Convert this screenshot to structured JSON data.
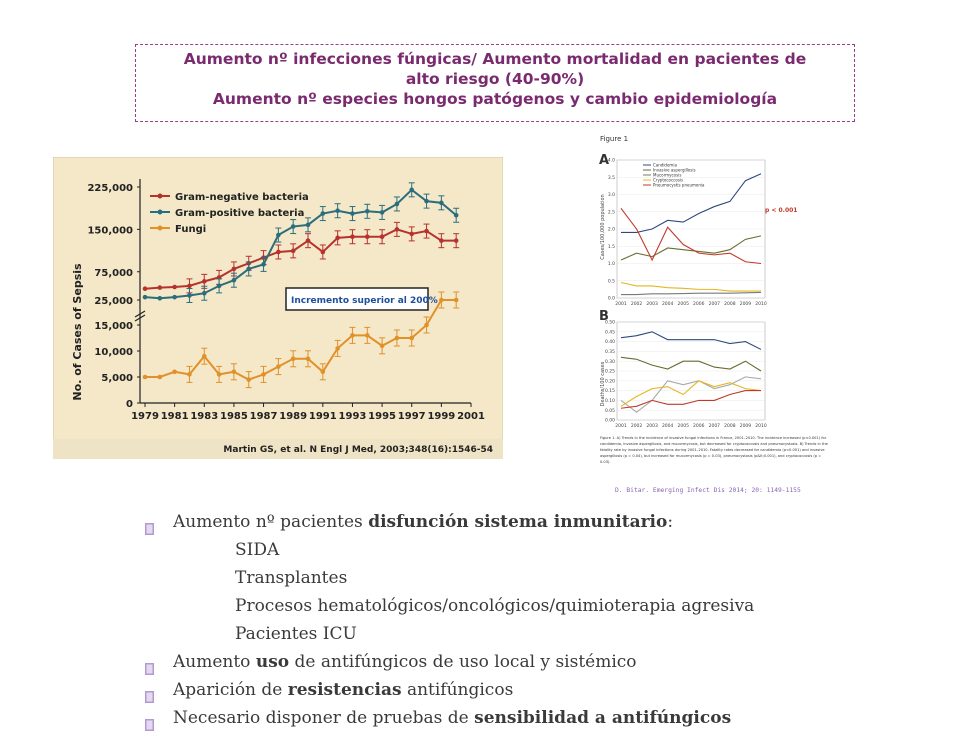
{
  "title": {
    "line1": "Aumento nº infecciones fúngicas/ Aumento mortalidad en pacientes de",
    "line2": "alto riesgo (40-90%)",
    "line3": "Aumento nº especies hongos patógenos y cambio epidemiología"
  },
  "chart_data": [
    {
      "type": "line",
      "ylabel": "No. of Cases of Sepsis",
      "x": [
        1979,
        1980,
        1981,
        1982,
        1983,
        1984,
        1985,
        1986,
        1987,
        1988,
        1989,
        1990,
        1991,
        1992,
        1993,
        1994,
        1995,
        1996,
        1997,
        1998,
        1999,
        2000
      ],
      "x_ticks": [
        "1979",
        "1981",
        "1983",
        "1985",
        "1987",
        "1989",
        "1991",
        "1993",
        "1995",
        "1997",
        "1999",
        "2001"
      ],
      "y_ticks_upper": [
        "225,000",
        "150,000",
        "75,000",
        "25,000"
      ],
      "y_ticks_lower": [
        "15,000",
        "10,000",
        "5,000",
        "0"
      ],
      "series": [
        {
          "name": "Gram-negative bacteria",
          "color": "#b5322f",
          "values": [
            45000,
            47000,
            48000,
            50000,
            58000,
            65000,
            80000,
            90000,
            100000,
            110000,
            112000,
            130000,
            110000,
            135000,
            137000,
            137000,
            137000,
            150000,
            142000,
            147000,
            130000,
            130000
          ]
        },
        {
          "name": "Gram-positive bacteria",
          "color": "#2a6e7e",
          "values": [
            30000,
            28000,
            30000,
            33000,
            37000,
            50000,
            60000,
            80000,
            88000,
            140000,
            155000,
            158000,
            178000,
            183000,
            178000,
            182000,
            180000,
            195000,
            220000,
            200000,
            197000,
            175000
          ]
        },
        {
          "name": "Fungi",
          "color": "#e0912a",
          "values": [
            5000,
            5000,
            6000,
            5500,
            9000,
            5500,
            6000,
            4500,
            5500,
            7000,
            8500,
            8500,
            6000,
            10500,
            13000,
            13000,
            11000,
            12500,
            12500,
            15000,
            25000,
            25000
          ]
        }
      ],
      "annotation": "Incremento superior al 200%",
      "source": "Martin GS, et al. N Engl J Med, 2003;348(16):1546-54"
    },
    {
      "type": "line",
      "figure_label": "Figure 1",
      "panel_a": {
        "label": "A",
        "ylabel": "Cases/100,000 population",
        "x": [
          2001,
          2002,
          2003,
          2004,
          2005,
          2006,
          2007,
          2008,
          2009,
          2010
        ],
        "x_ticks": [
          "2001",
          "2002",
          "2003",
          "2004",
          "2005",
          "2006",
          "2007",
          "2008",
          "2009",
          "2010"
        ],
        "y_ticks": [
          "4.0",
          "3.5",
          "3.0",
          "2.5",
          "2.0",
          "1.5",
          "1.0",
          "0.5",
          "0.0"
        ],
        "series": [
          {
            "name": "Candidemia",
            "color": "#2e4a7d",
            "values": [
              1.9,
              1.9,
              2.0,
              2.25,
              2.2,
              2.45,
              2.65,
              2.8,
              3.4,
              3.6
            ]
          },
          {
            "name": "Invasive aspergillosis",
            "color": "#6b6b2f",
            "values": [
              1.1,
              1.3,
              1.2,
              1.45,
              1.4,
              1.35,
              1.3,
              1.4,
              1.7,
              1.8
            ]
          },
          {
            "name": "Mucormycosis",
            "color": "#7a7a7a",
            "values": [
              0.1,
              0.1,
              0.12,
              0.12,
              0.13,
              0.14,
              0.14,
              0.14,
              0.15,
              0.16
            ]
          },
          {
            "name": "Cryptococcosis",
            "color": "#e6b422",
            "values": [
              0.45,
              0.35,
              0.35,
              0.3,
              0.28,
              0.25,
              0.25,
              0.2,
              0.2,
              0.2
            ]
          },
          {
            "name": "Pneumocystis pneumonia",
            "color": "#c0392b",
            "values": [
              2.6,
              2.0,
              1.1,
              2.05,
              1.55,
              1.3,
              1.25,
              1.3,
              1.05,
              1.0
            ]
          }
        ],
        "annotation": "p < 0.001"
      },
      "panel_b": {
        "label": "B",
        "ylabel": "Deaths/100 cases",
        "x": [
          2001,
          2002,
          2003,
          2004,
          2005,
          2006,
          2007,
          2008,
          2009,
          2010
        ],
        "x_ticks": [
          "2001",
          "2002",
          "2003",
          "2004",
          "2005",
          "2006",
          "2007",
          "2008",
          "2009",
          "2010"
        ],
        "y_ticks": [
          "0.50",
          "0.45",
          "0.40",
          "0.35",
          "0.30",
          "0.25",
          "0.20",
          "0.15",
          "0.10",
          "0.05",
          "0.00"
        ],
        "series": [
          {
            "name": "Candidemia",
            "color": "#2e4a7d",
            "values": [
              0.42,
              0.43,
              0.45,
              0.41,
              0.41,
              0.41,
              0.41,
              0.39,
              0.4,
              0.36
            ]
          },
          {
            "name": "Invasive aspergillosis",
            "color": "#6b6b2f",
            "values": [
              0.32,
              0.31,
              0.28,
              0.26,
              0.3,
              0.3,
              0.27,
              0.26,
              0.3,
              0.25
            ]
          },
          {
            "name": "Mucormycosis",
            "color": "#a8a8a8",
            "values": [
              0.1,
              0.04,
              0.1,
              0.2,
              0.18,
              0.2,
              0.16,
              0.18,
              0.22,
              0.21
            ]
          },
          {
            "name": "Cryptococcosis",
            "color": "#e6b422",
            "values": [
              0.07,
              0.12,
              0.16,
              0.17,
              0.13,
              0.2,
              0.17,
              0.19,
              0.16,
              0.15
            ]
          },
          {
            "name": "Pneumocystis pneumonia",
            "color": "#c0392b",
            "values": [
              0.06,
              0.07,
              0.1,
              0.08,
              0.08,
              0.1,
              0.1,
              0.13,
              0.15,
              0.15
            ]
          }
        ]
      },
      "caption": "Figure 1. A) Trends in the incidence of invasive fungal infections in France, 2001–2010. The incidence increased (p<0.001) for candidemia, invasive aspergillosis, and mucormycosis, but decreased for cryptococcosis and pneumocystosis. B) Trends in the fatality rate by invasive fungal infections during 2001–2010. Fatality rates decreased for candidemia (p<0.001) and invasive aspergillosis (p = 0.04), but increased for mucormycosis (p = 0.03), pneumocystosis (p&lt;0.001), and cryptococcosis (p = 0.03).",
      "source": "D. Bitar. Emerging Infect Dis 2014; 20: 1149-1155"
    }
  ],
  "bullets": [
    {
      "pre": "Aumento nº pacientes ",
      "bold": "disfunción sistema inmunitario",
      "post": ":"
    },
    {
      "sub": "SIDA"
    },
    {
      "sub": "Transplantes"
    },
    {
      "sub": "Procesos hematológicos/oncológicos/quimioterapia agresiva"
    },
    {
      "sub": "Pacientes ICU"
    },
    {
      "pre": "Aumento ",
      "bold": "uso",
      "post": " de antifúngicos de uso local y sistémico"
    },
    {
      "pre": "Aparición de ",
      "bold": "resistencias",
      "post": " antifúngicos"
    },
    {
      "pre": "Necesario disponer de pruebas de ",
      "bold": "sensibilidad a antifúngicos",
      "post": ""
    }
  ],
  "colors": {
    "title": "#7a2a6e",
    "bullet_icon": "#b39bd1",
    "chart1_bg": "#f4e8c8"
  }
}
